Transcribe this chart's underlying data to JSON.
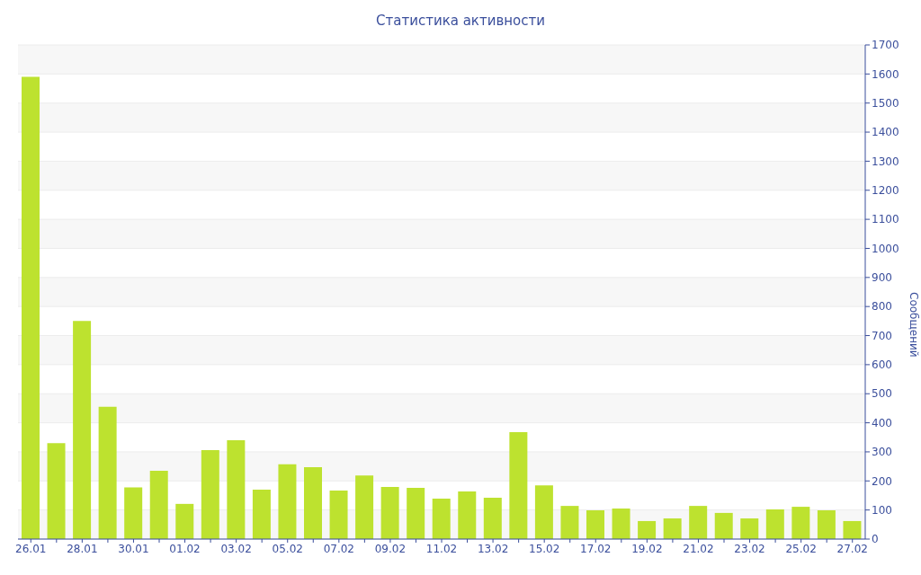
{
  "chart_data": {
    "type": "bar",
    "title": "Статистика активности",
    "ylabel": "Сообщений",
    "categories": [
      "26.01",
      null,
      "28.01",
      null,
      "30.01",
      null,
      "01.02",
      null,
      "03.02",
      null,
      "05.02",
      null,
      "07.02",
      null,
      "09.02",
      null,
      "11.02",
      null,
      "13.02",
      null,
      "15.02",
      null,
      "17.02",
      null,
      "19.02",
      null,
      "21.02",
      null,
      "23.02",
      null,
      "25.02",
      null,
      "27.02"
    ],
    "values": [
      1590,
      330,
      750,
      455,
      178,
      235,
      121,
      306,
      340,
      170,
      257,
      247,
      167,
      219,
      179,
      176,
      139,
      164,
      142,
      368,
      185,
      114,
      99,
      105,
      62,
      71,
      114,
      90,
      71,
      102,
      111,
      99,
      62
    ],
    "color": "#bde22f",
    "ylim": [
      0,
      1700
    ],
    "yticks": [
      0,
      100,
      200,
      300,
      400,
      500,
      600,
      700,
      800,
      900,
      1000,
      1100,
      1200,
      1300,
      1400,
      1500,
      1600,
      1700
    ],
    "grid": "y"
  }
}
